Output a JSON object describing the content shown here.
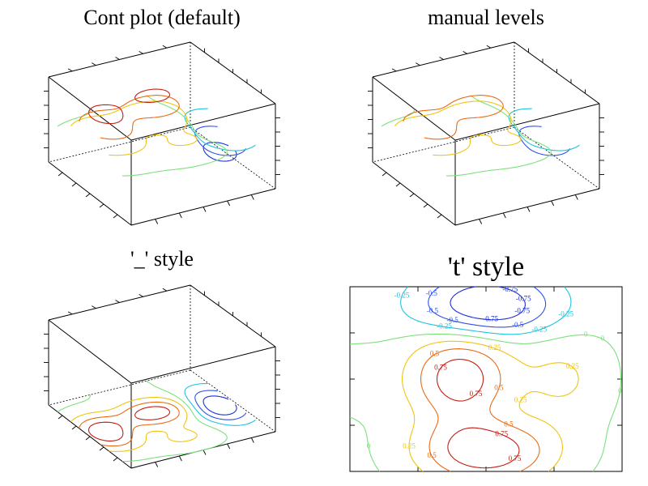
{
  "chart_data": [
    {
      "type": "contour",
      "title": "Cont plot (default)",
      "projection": "3d",
      "placement": "levels drawn at z heights",
      "levels": [
        -0.75,
        -0.5,
        -0.25,
        0,
        0.25,
        0.5,
        0.75
      ]
    },
    {
      "type": "contour",
      "title": "manual levels",
      "projection": "3d",
      "placement": "levels drawn at z heights",
      "levels": [
        -0.5,
        -0.25,
        0,
        0.25,
        0.5
      ]
    },
    {
      "type": "contour",
      "title": "'_' style",
      "projection": "3d",
      "placement": "bottom face",
      "levels": [
        -0.75,
        -0.5,
        -0.25,
        0,
        0.25,
        0.5,
        0.75
      ]
    },
    {
      "type": "contour",
      "title": "'t' style",
      "projection": "2d",
      "labeled": true,
      "levels": [
        -0.75,
        -0.5,
        -0.25,
        0,
        0.25,
        0.5,
        0.75
      ],
      "labels": [
        "0.5",
        "0.75",
        "0.25",
        "0",
        "-0.25",
        "-0.5"
      ]
    }
  ],
  "colors": {
    "-0.75": "#1c2fd9",
    "-0.5": "#2a52e8",
    "-0.25": "#1cc4df",
    "0": "#7de07d",
    "0.25": "#f0c40e",
    "0.5": "#ea6a12",
    "0.75": "#c21d11"
  }
}
